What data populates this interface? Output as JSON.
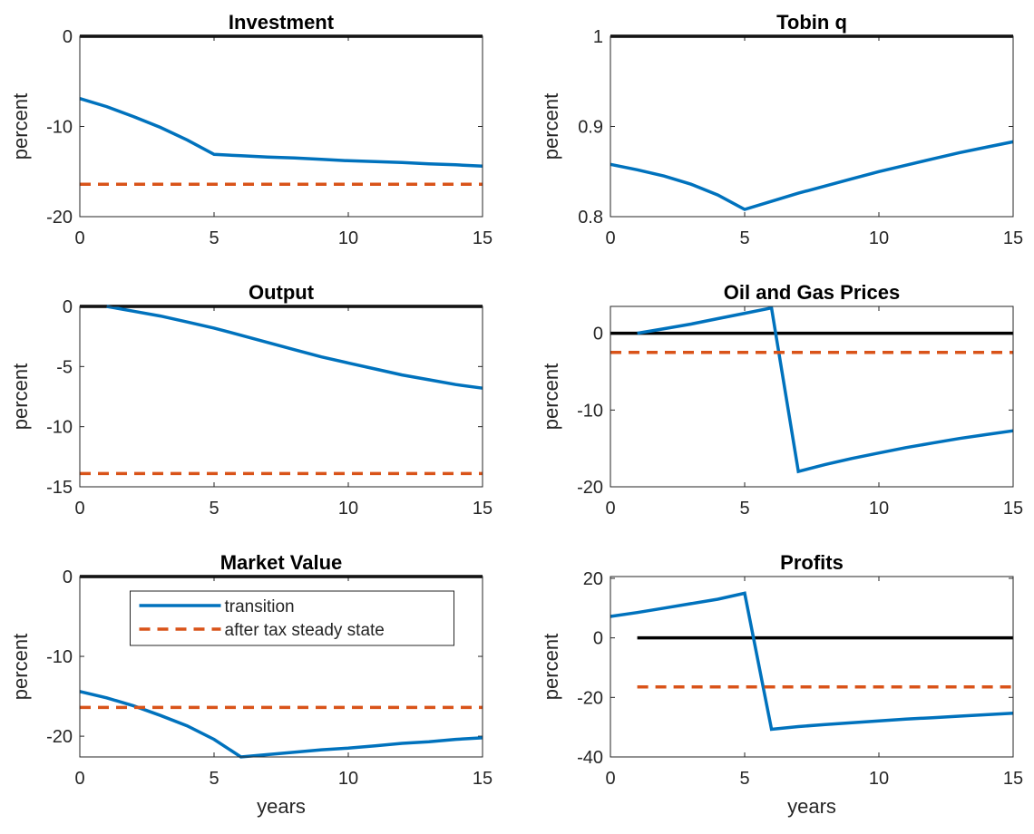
{
  "chart_data": [
    {
      "type": "line",
      "title": "Investment",
      "ylabel": "percent",
      "xlim": [
        0,
        15
      ],
      "xticks": [
        0,
        5,
        10,
        15
      ],
      "ylim": [
        -20,
        0
      ],
      "yticks": [
        -20,
        -10,
        0
      ],
      "series": [
        {
          "color": "#000000",
          "x": [
            0,
            15
          ],
          "values": [
            0,
            0
          ]
        },
        {
          "color": "#0072bd",
          "x": [
            0,
            1,
            2,
            3,
            4,
            5,
            6,
            7,
            8,
            9,
            10,
            11,
            12,
            13,
            14,
            15
          ],
          "values": [
            -6.9,
            -7.8,
            -8.9,
            -10.1,
            -11.5,
            -13.1,
            -13.25,
            -13.4,
            -13.5,
            -13.65,
            -13.8,
            -13.9,
            -14.0,
            -14.15,
            -14.25,
            -14.4
          ]
        },
        {
          "color": "#d95319",
          "dash": "--",
          "x": [
            0,
            15
          ],
          "values": [
            -16.4,
            -16.4
          ]
        }
      ]
    },
    {
      "type": "line",
      "title": "Tobin q",
      "ylabel": "percent",
      "xlim": [
        0,
        15
      ],
      "xticks": [
        0,
        5,
        10,
        15
      ],
      "ylim": [
        0.8,
        1
      ],
      "yticks": [
        0.8,
        0.9,
        1
      ],
      "series": [
        {
          "color": "#000000",
          "x": [
            0,
            15
          ],
          "values": [
            1,
            1
          ]
        },
        {
          "color": "#0072bd",
          "x": [
            0,
            1,
            2,
            3,
            4,
            5,
            6,
            7,
            8,
            9,
            10,
            11,
            12,
            13,
            14,
            15
          ],
          "values": [
            0.858,
            0.852,
            0.845,
            0.836,
            0.824,
            0.808,
            0.817,
            0.826,
            0.834,
            0.842,
            0.85,
            0.857,
            0.864,
            0.871,
            0.877,
            0.883
          ]
        }
      ]
    },
    {
      "type": "line",
      "title": "Output",
      "ylabel": "percent",
      "xlim": [
        0,
        15
      ],
      "xticks": [
        0,
        5,
        10,
        15
      ],
      "ylim": [
        -15,
        0
      ],
      "yticks": [
        -15,
        -10,
        -5,
        0
      ],
      "series": [
        {
          "color": "#000000",
          "x": [
            0,
            15
          ],
          "values": [
            0,
            0
          ]
        },
        {
          "color": "#0072bd",
          "x": [
            1,
            2,
            3,
            4,
            5,
            6,
            7,
            8,
            9,
            10,
            11,
            12,
            13,
            14,
            15
          ],
          "values": [
            0,
            -0.4,
            -0.8,
            -1.3,
            -1.8,
            -2.4,
            -3.0,
            -3.6,
            -4.2,
            -4.7,
            -5.2,
            -5.7,
            -6.1,
            -6.5,
            -6.8
          ]
        },
        {
          "color": "#d95319",
          "dash": "--",
          "x": [
            0,
            15
          ],
          "values": [
            -13.9,
            -13.9
          ]
        }
      ]
    },
    {
      "type": "line",
      "title": "Oil and Gas Prices",
      "ylabel": "percent",
      "xlim": [
        0,
        15
      ],
      "xticks": [
        0,
        5,
        10,
        15
      ],
      "ylim": [
        -20,
        3.5
      ],
      "yticks": [
        -20,
        -10,
        0
      ],
      "series": [
        {
          "color": "#000000",
          "x": [
            0,
            15
          ],
          "values": [
            0,
            0
          ]
        },
        {
          "color": "#0072bd",
          "x": [
            1,
            2,
            3,
            4,
            5,
            6,
            7,
            8,
            9,
            10,
            11,
            12,
            13,
            14,
            15
          ],
          "values": [
            0,
            0.6,
            1.2,
            1.9,
            2.6,
            3.3,
            -18.0,
            -17.1,
            -16.3,
            -15.6,
            -14.9,
            -14.3,
            -13.7,
            -13.2,
            -12.7
          ]
        },
        {
          "color": "#d95319",
          "dash": "--",
          "x": [
            0,
            15
          ],
          "values": [
            -2.5,
            -2.5
          ]
        }
      ]
    },
    {
      "type": "line",
      "title": "Market Value",
      "ylabel": "percent",
      "xlabel": "years",
      "legend": "north",
      "xlim": [
        0,
        15
      ],
      "xticks": [
        0,
        5,
        10,
        15
      ],
      "ylim": [
        -22.6,
        0
      ],
      "yticks": [
        -20,
        -10,
        0
      ],
      "series": [
        {
          "color": "#000000",
          "x": [
            0,
            15
          ],
          "values": [
            0,
            0
          ]
        },
        {
          "name": "transition",
          "color": "#0072bd",
          "x": [
            0,
            1,
            2,
            3,
            4,
            5,
            6,
            7,
            8,
            9,
            10,
            11,
            12,
            13,
            14,
            15
          ],
          "values": [
            -14.4,
            -15.2,
            -16.2,
            -17.4,
            -18.7,
            -20.4,
            -22.6,
            -22.3,
            -22.0,
            -21.7,
            -21.5,
            -21.2,
            -20.9,
            -20.7,
            -20.4,
            -20.2
          ]
        },
        {
          "name": "after tax steady state",
          "color": "#d95319",
          "dash": "--",
          "x": [
            0,
            15
          ],
          "values": [
            -16.4,
            -16.4
          ]
        }
      ]
    },
    {
      "type": "line",
      "title": "Profits",
      "ylabel": "percent",
      "xlabel": "years",
      "xlim": [
        0,
        15
      ],
      "xticks": [
        0,
        5,
        10,
        15
      ],
      "ylim": [
        -40,
        20.6
      ],
      "yticks": [
        -40,
        -20,
        0,
        20
      ],
      "series": [
        {
          "color": "#000000",
          "x": [
            1,
            15
          ],
          "values": [
            0,
            0
          ]
        },
        {
          "color": "#0072bd",
          "x": [
            0,
            1,
            2,
            3,
            4,
            5,
            6,
            7,
            8,
            9,
            10,
            11,
            12,
            13,
            14,
            15
          ],
          "values": [
            7.2,
            8.5,
            10,
            11.5,
            13,
            15,
            -30.7,
            -29.8,
            -29.1,
            -28.5,
            -27.9,
            -27.3,
            -26.8,
            -26.3,
            -25.8,
            -25.3
          ]
        },
        {
          "color": "#d95319",
          "dash": "--",
          "x": [
            1,
            15
          ],
          "values": [
            -16.5,
            -16.5
          ]
        }
      ]
    }
  ]
}
